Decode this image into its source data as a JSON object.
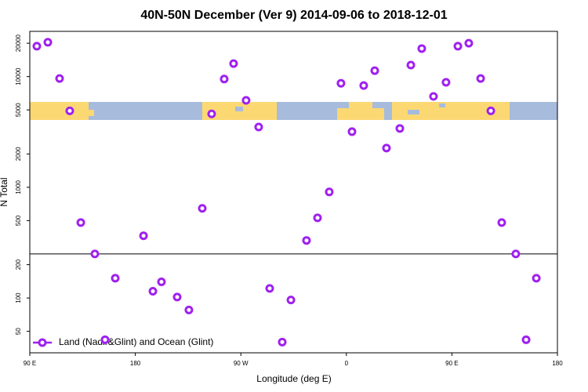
{
  "chart_data": {
    "type": "scatter",
    "title": "40N-50N December (Ver 9)   2014-09-06 to 2018-12-01",
    "x_label": "Longitude (deg E)",
    "y_label": "N Total",
    "log_y": true,
    "legend": "bottom-left",
    "reference_line": 250,
    "xlim": [
      90,
      540
    ],
    "xticks": [
      {
        "value": 90,
        "label": "90 E"
      },
      {
        "value": 180,
        "label": "180"
      },
      {
        "value": 270,
        "label": "90 W"
      },
      {
        "value": 360,
        "label": "0"
      },
      {
        "value": 450,
        "label": "90 E"
      },
      {
        "value": 540,
        "label": "180"
      }
    ],
    "ylim": [
      32,
      25600
    ],
    "yticks": [
      50,
      100,
      200,
      500,
      1000,
      2000,
      5000,
      10000,
      20000
    ],
    "series": [
      {
        "name": "Land (Nadir&Glint) and Ocean (Glint)",
        "color": "#a020f0",
        "x": [
          96.0,
          105.4,
          115.4,
          124.1,
          133.5,
          145.5,
          154.2,
          162.9,
          187.0,
          195.0,
          202.3,
          215.7,
          225.7,
          237.1,
          245.1,
          255.8,
          263.8,
          274.5,
          285.2,
          294.6,
          305.3,
          312.7,
          326.0,
          335.4,
          345.4,
          355.4,
          364.8,
          374.8,
          384.2,
          394.2,
          405.6,
          415.0,
          424.3,
          434.3,
          445.0,
          455.1,
          464.4,
          474.5,
          483.2,
          492.5,
          504.5,
          513.3,
          522.0
        ],
        "values": [
          18800,
          20400,
          9600,
          4900,
          480,
          250,
          42,
          151,
          365,
          115,
          140,
          102,
          78,
          645,
          4600,
          9500,
          13100,
          6100,
          3500,
          122,
          40,
          96,
          331,
          530,
          908,
          8700,
          3180,
          8300,
          11300,
          2260,
          3400,
          12700,
          17900,
          6620,
          8870,
          18800,
          20000,
          9600,
          4900,
          480,
          250,
          42,
          151
        ]
      }
    ]
  }
}
